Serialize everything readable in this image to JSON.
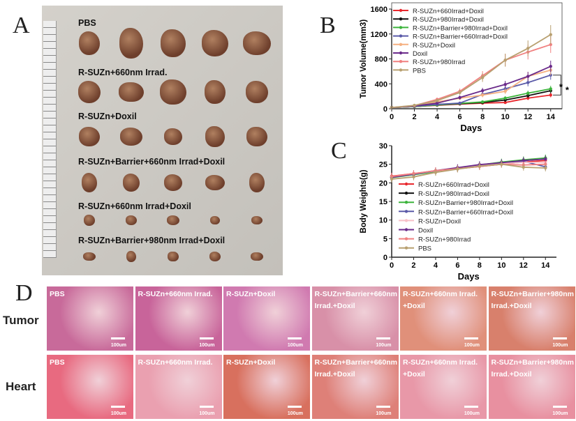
{
  "panels": {
    "a": "A",
    "b": "B",
    "c": "C",
    "d": "D"
  },
  "panel_a": {
    "rows": [
      "PBS",
      "R-SUZn+660nm Irrad.",
      "R-SUZn+Doxil",
      "R-SUZn+Barrier+660nm Irrad+Doxil",
      "R-SUZn+660nm Irrad+Doxil",
      "R-SUZn+Barrier+980nm Irrad+Doxil"
    ]
  },
  "panel_d": {
    "row_labels": [
      "Tumor",
      "Heart"
    ],
    "columns": [
      "PBS",
      "R-SUZn+660nm Irrad.",
      "R-SUZn+Doxil",
      "R-SUZn+Barrier+660nm Irrad.+Doxil",
      "R-SUZn+660nm Irrad. +Doxil",
      "R-SUZn+Barrier+980nm Irrad.+Doxil"
    ],
    "scale_bar": "100um",
    "tumor_colors": [
      "#c86a9a",
      "#c8649a",
      "#d07ab0",
      "#d890a8",
      "#e0907a",
      "#d8806c"
    ],
    "heart_colors": [
      "#e86a80",
      "#eaa0b0",
      "#d8705e",
      "#de8078",
      "#e898a8",
      "#e890a0"
    ]
  },
  "chart_data": [
    {
      "type": "line",
      "xlabel": "Days",
      "ylabel": "Tumor Volume(mm3)",
      "xlim": [
        0,
        15
      ],
      "ylim": [
        0,
        1600
      ],
      "xticks": [
        0,
        2,
        4,
        6,
        8,
        10,
        12,
        14
      ],
      "yticks": [
        0,
        400,
        800,
        1200,
        1600
      ],
      "legend": "top-left",
      "annotations": [
        "*",
        "*"
      ],
      "x": [
        0,
        2,
        4,
        6,
        8,
        10,
        12,
        14
      ],
      "series": [
        {
          "name": "R-SUZn+660Irrad+Doxil",
          "color": "#e8282e",
          "values": [
            20,
            35,
            55,
            75,
            90,
            100,
            170,
            220
          ]
        },
        {
          "name": "R-SUZn+980Irrad+Doxil",
          "color": "#111111",
          "values": [
            20,
            35,
            60,
            80,
            100,
            140,
            210,
            290
          ]
        },
        {
          "name": "R-SUZn+Barrier+980Irrad+Doxil",
          "color": "#3cb43c",
          "values": [
            20,
            35,
            60,
            85,
            110,
            170,
            250,
            320
          ]
        },
        {
          "name": "R-SUZn+Barrier+660Irrad+Doxil",
          "color": "#5a5aa8",
          "values": [
            20,
            40,
            70,
            90,
            230,
            320,
            420,
            540
          ]
        },
        {
          "name": "R-SUZn+Doxil",
          "color": "#f5b080",
          "values": [
            20,
            45,
            110,
            170,
            220,
            280,
            520,
            620
          ]
        },
        {
          "name": "Doxil",
          "color": "#6a2a8a",
          "values": [
            20,
            45,
            90,
            180,
            290,
            390,
            520,
            680
          ]
        },
        {
          "name": "R-SUZn+980Irrad",
          "color": "#f08080",
          "values": [
            20,
            50,
            150,
            280,
            530,
            780,
            910,
            1030
          ]
        },
        {
          "name": "PBS",
          "color": "#b8a070",
          "values": [
            20,
            55,
            130,
            260,
            500,
            780,
            970,
            1190
          ]
        }
      ]
    },
    {
      "type": "line",
      "xlabel": "Days",
      "ylabel": "Body Weights(g)",
      "xlim": [
        0,
        15
      ],
      "ylim": [
        0,
        30
      ],
      "xticks": [
        0,
        2,
        4,
        6,
        8,
        10,
        12,
        14
      ],
      "yticks": [
        0,
        5,
        10,
        15,
        20,
        25,
        30
      ],
      "legend": "center-left",
      "x": [
        0,
        2,
        4,
        6,
        8,
        10,
        12,
        14
      ],
      "series": [
        {
          "name": "R-SUZn+660Irrad+Doxil",
          "color": "#e8282e",
          "values": [
            21.8,
            22.5,
            23.2,
            23.8,
            24.4,
            25,
            25.6,
            26
          ]
        },
        {
          "name": "R-SUZn+980Irrad+Doxil",
          "color": "#111111",
          "values": [
            21.5,
            22.3,
            23.1,
            23.9,
            24.7,
            25.4,
            26,
            26.5
          ]
        },
        {
          "name": "R-SUZn+Barrier+980Irrad+Doxil",
          "color": "#3cb43c",
          "values": [
            21.4,
            22.2,
            23,
            23.8,
            24.8,
            25.6,
            26.2,
            26.7
          ]
        },
        {
          "name": "R-SUZn+Barrier+660Irrad+Doxil",
          "color": "#5a5aa8",
          "values": [
            21.5,
            22.3,
            23.2,
            24,
            24.8,
            25.4,
            25.8,
            24.3
          ]
        },
        {
          "name": "R-SUZn+Doxil",
          "color": "#f8c0c8",
          "values": [
            21.6,
            22.4,
            23.2,
            23.9,
            24.6,
            25.2,
            25.5,
            25.5
          ]
        },
        {
          "name": "Doxil",
          "color": "#6a2a8a",
          "values": [
            21.5,
            22.4,
            23.3,
            24.1,
            24.9,
            25.4,
            26,
            26.4
          ]
        },
        {
          "name": "R-SUZn+980Irrad",
          "color": "#f08080",
          "values": [
            21.7,
            22.5,
            23.3,
            23.8,
            24.4,
            25,
            24.8,
            25
          ]
        },
        {
          "name": "PBS",
          "color": "#b8a070",
          "values": [
            21,
            21.6,
            22.8,
            23.7,
            24.5,
            25,
            24.2,
            24
          ]
        }
      ]
    }
  ]
}
